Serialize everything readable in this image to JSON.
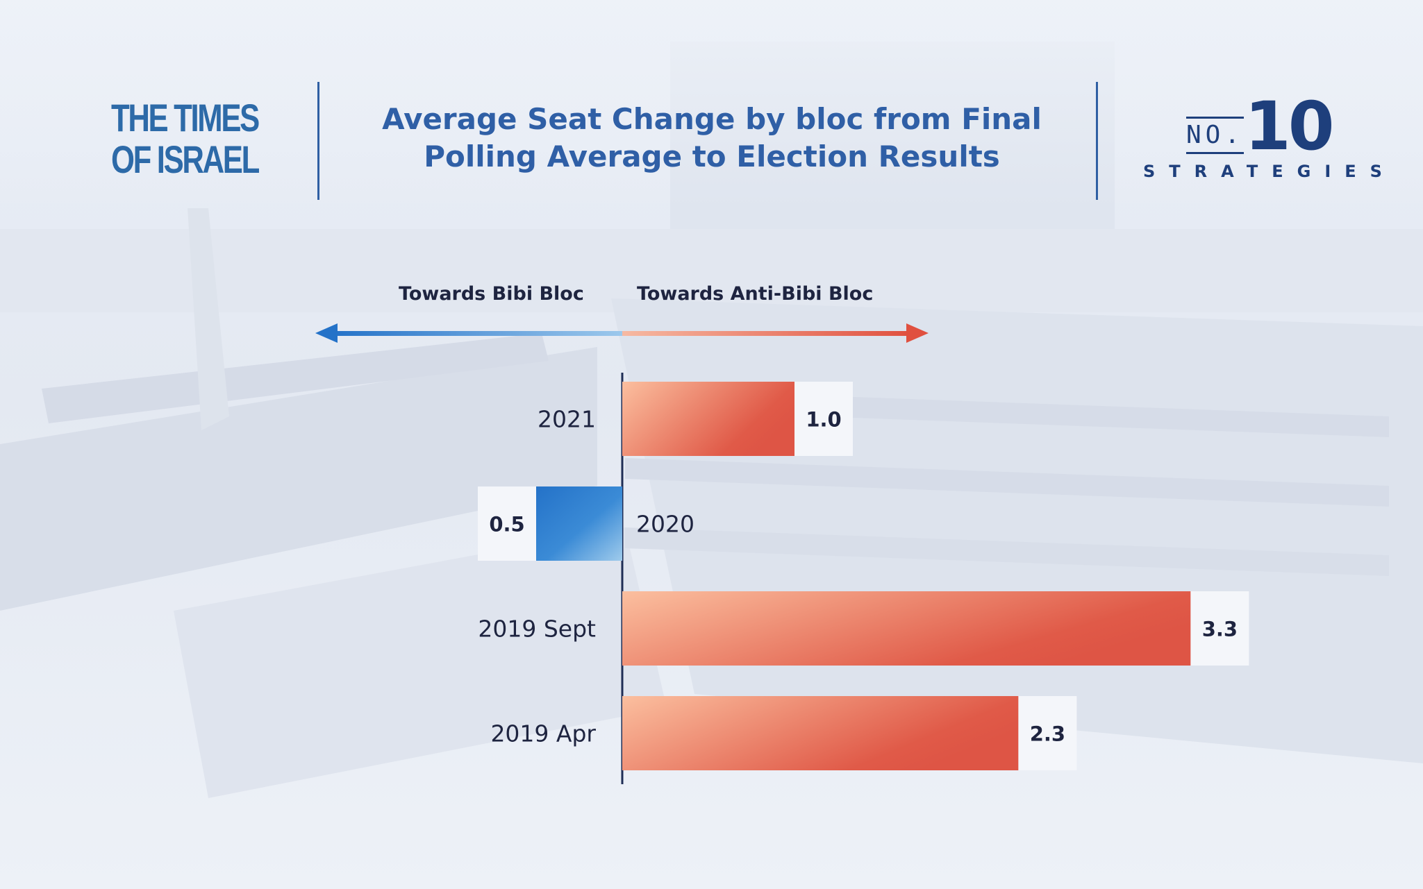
{
  "brand": {
    "publication": "THE TIMES OF ISRAEL",
    "publication_line1": "THE TIMES",
    "publication_line2": "OF ISRAEL",
    "series_no": "NO.",
    "series_number": "10",
    "series_name": "STRATEGIES"
  },
  "colors": {
    "title_blue": "#2f5fa6",
    "bibi_blue": "#2b7bd0",
    "anti_bibi_red": "#e05a48",
    "text_dark": "#1e2440"
  },
  "chart_data": {
    "type": "bar",
    "orientation": "horizontal",
    "title": "Average Seat Change by bloc from Final Polling Average to Election Results",
    "direction_labels": {
      "negative": "Towards Bibi Bloc",
      "positive": "Towards Anti-Bibi Bloc"
    },
    "categories": [
      "2021",
      "2020",
      "2019 Sept",
      "2019 Apr"
    ],
    "values": [
      1.0,
      -0.5,
      3.3,
      2.3
    ],
    "value_labels": [
      "1.0",
      "0.5",
      "3.3",
      "2.3"
    ],
    "xlim": [
      -0.5,
      3.6
    ],
    "grid": false,
    "legend": "none"
  }
}
